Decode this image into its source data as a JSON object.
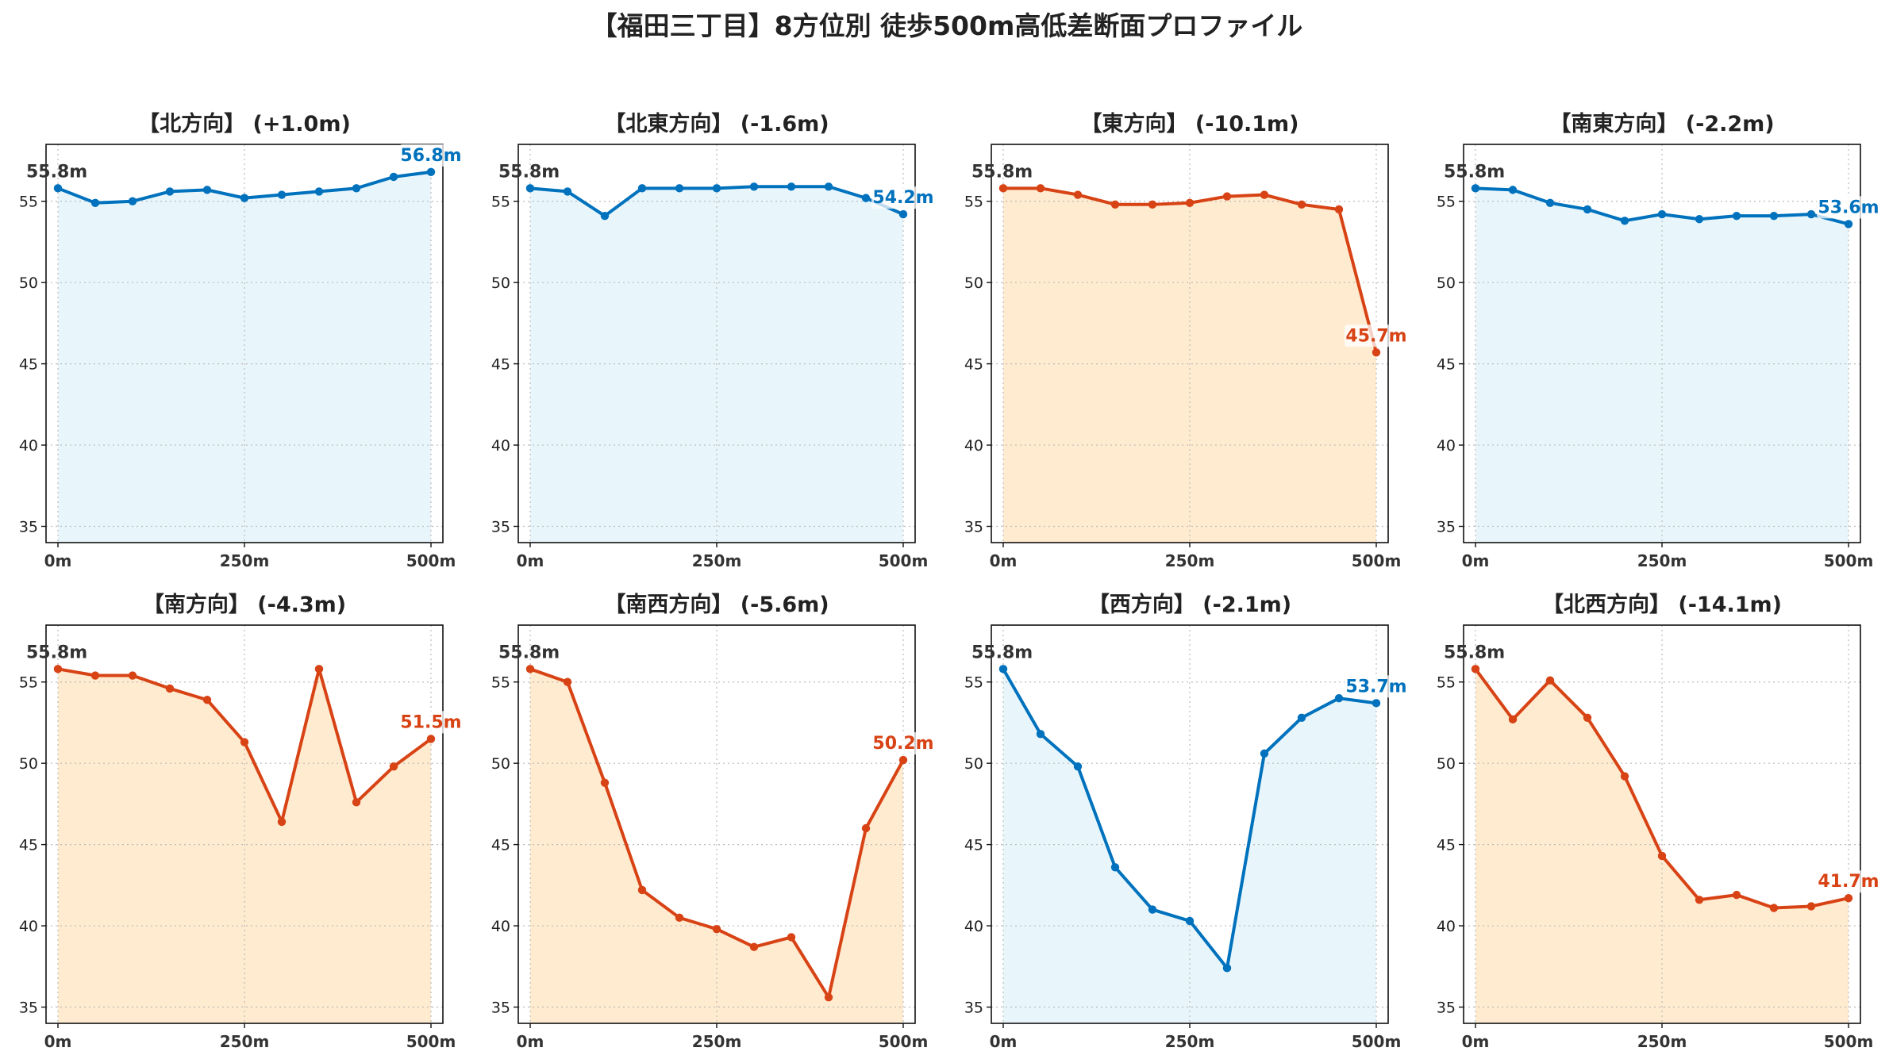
{
  "colors": {
    "up_line": "#0072BD",
    "up_fill": "#E8F6FC",
    "down_line": "#D84315",
    "down_fill": "#FFEBCF"
  },
  "chart_data": {
    "type": "line",
    "title": "【福田三丁目】8方位別 徒歩500m高低差断面プロファイル",
    "x": [
      0,
      50,
      100,
      150,
      200,
      250,
      300,
      350,
      400,
      450,
      500
    ],
    "x_ticks": [
      0,
      250,
      500
    ],
    "x_tick_labels": [
      "0m",
      "250m",
      "500m"
    ],
    "ylim": [
      34,
      58.5
    ],
    "y_ticks": [
      35,
      40,
      45,
      50,
      55
    ],
    "grid": true,
    "start_label": "55.8m",
    "panels": [
      {
        "title": "【北方向】 (+1.0m)",
        "trend": "up",
        "end_label": "56.8m",
        "values": [
          55.8,
          54.9,
          55.0,
          55.6,
          55.7,
          55.2,
          55.4,
          55.6,
          55.8,
          56.5,
          56.8
        ]
      },
      {
        "title": "【北東方向】 (-1.6m)",
        "trend": "up",
        "end_label": "54.2m",
        "values": [
          55.8,
          55.6,
          54.1,
          55.8,
          55.8,
          55.8,
          55.9,
          55.9,
          55.9,
          55.2,
          54.2
        ]
      },
      {
        "title": "【東方向】 (-10.1m)",
        "trend": "down",
        "end_label": "45.7m",
        "values": [
          55.8,
          55.8,
          55.4,
          54.8,
          54.8,
          54.9,
          55.3,
          55.4,
          54.8,
          54.5,
          45.7
        ]
      },
      {
        "title": "【南東方向】 (-2.2m)",
        "trend": "up",
        "end_label": "53.6m",
        "values": [
          55.8,
          55.7,
          54.9,
          54.5,
          53.8,
          54.2,
          53.9,
          54.1,
          54.1,
          54.2,
          53.6
        ]
      },
      {
        "title": "【南方向】 (-4.3m)",
        "trend": "down",
        "end_label": "51.5m",
        "values": [
          55.8,
          55.4,
          55.4,
          54.6,
          53.9,
          51.3,
          46.4,
          55.8,
          47.6,
          49.8,
          51.5
        ]
      },
      {
        "title": "【南西方向】 (-5.6m)",
        "trend": "down",
        "end_label": "50.2m",
        "values": [
          55.8,
          55.0,
          48.8,
          42.2,
          40.5,
          39.8,
          38.7,
          39.3,
          35.6,
          46.0,
          50.2
        ]
      },
      {
        "title": "【西方向】 (-2.1m)",
        "trend": "up",
        "end_label": "53.7m",
        "values": [
          55.8,
          51.8,
          49.8,
          43.6,
          41.0,
          40.3,
          37.4,
          50.6,
          52.8,
          54.0,
          53.7
        ]
      },
      {
        "title": "【北西方向】 (-14.1m)",
        "trend": "down",
        "end_label": "41.7m",
        "values": [
          55.8,
          52.7,
          55.1,
          52.8,
          49.2,
          44.3,
          41.6,
          41.9,
          41.1,
          41.2,
          41.7
        ]
      }
    ]
  }
}
